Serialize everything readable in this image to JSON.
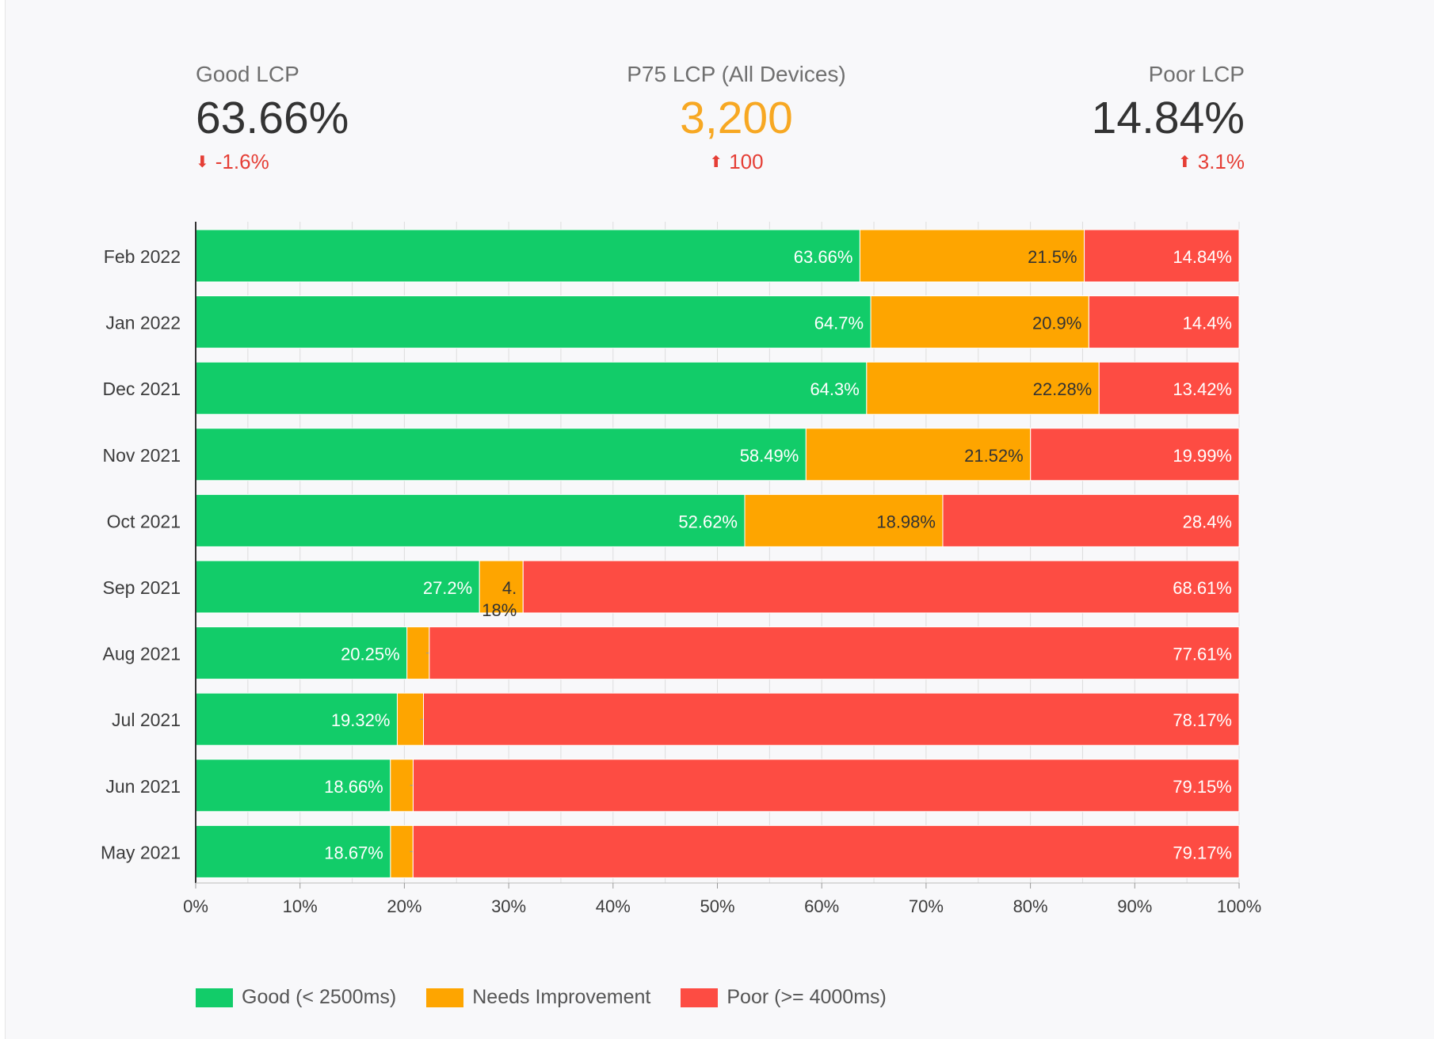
{
  "kpis": {
    "good": {
      "label": "Good LCP",
      "value": "63.66%",
      "delta": "-1.6%",
      "direction": "down"
    },
    "p75": {
      "label": "P75 LCP (All Devices)",
      "value": "3,200",
      "delta": "100",
      "direction": "up"
    },
    "poor": {
      "label": "Poor LCP",
      "value": "14.84%",
      "delta": "3.1%",
      "direction": "up"
    }
  },
  "colors": {
    "good": "#12cc69",
    "needs": "#fea500",
    "poor": "#fd4c43",
    "axis": "#333333",
    "grid": "#dddddd",
    "delta_negative": "#e53e35",
    "accent": "#f7a823"
  },
  "legend": [
    {
      "label": "Good (< 2500ms)",
      "color": "#12cc69"
    },
    {
      "label": "Needs Improvement",
      "color": "#fea500"
    },
    {
      "label": "Poor (>= 4000ms)",
      "color": "#fd4c43"
    }
  ],
  "chart_data": {
    "type": "bar",
    "orientation": "horizontal",
    "stacked": true,
    "categories": [
      "Feb 2022",
      "Jan 2022",
      "Dec 2021",
      "Nov 2021",
      "Oct 2021",
      "Sep 2021",
      "Aug 2021",
      "Jul 2021",
      "Jun 2021",
      "May 2021"
    ],
    "series": [
      {
        "name": "Good (< 2500ms)",
        "values": [
          63.66,
          64.7,
          64.3,
          58.49,
          52.62,
          27.2,
          20.25,
          19.32,
          18.66,
          18.67
        ]
      },
      {
        "name": "Needs Improvement",
        "values": [
          21.5,
          20.9,
          22.28,
          21.52,
          18.98,
          4.18,
          2.14,
          2.51,
          2.18,
          2.16
        ]
      },
      {
        "name": "Poor (>= 4000ms)",
        "values": [
          14.84,
          14.4,
          13.42,
          19.99,
          28.4,
          68.61,
          77.61,
          78.17,
          79.15,
          79.17
        ]
      }
    ],
    "labels": [
      [
        "63.66%",
        "64.7%",
        "64.3%",
        "58.49%",
        "52.62%",
        "27.2%",
        "20.25%",
        "19.32%",
        "18.66%",
        "18.67%"
      ],
      [
        "21.5%",
        "20.9%",
        "22.28%",
        "21.52%",
        "18.98%",
        "4.18%",
        "2.14%",
        "2.51%",
        "2.18%",
        "2.16%"
      ],
      [
        "14.84%",
        "14.4%",
        "13.42%",
        "19.99%",
        "28.4%",
        "68.61%",
        "77.61%",
        "78.17%",
        "79.15%",
        "79.17%"
      ]
    ],
    "xlim": [
      0,
      100
    ],
    "xticks": [
      "0%",
      "10%",
      "20%",
      "30%",
      "40%",
      "50%",
      "60%",
      "70%",
      "80%",
      "90%",
      "100%"
    ],
    "grid": true,
    "legend_position": "bottom-left"
  }
}
